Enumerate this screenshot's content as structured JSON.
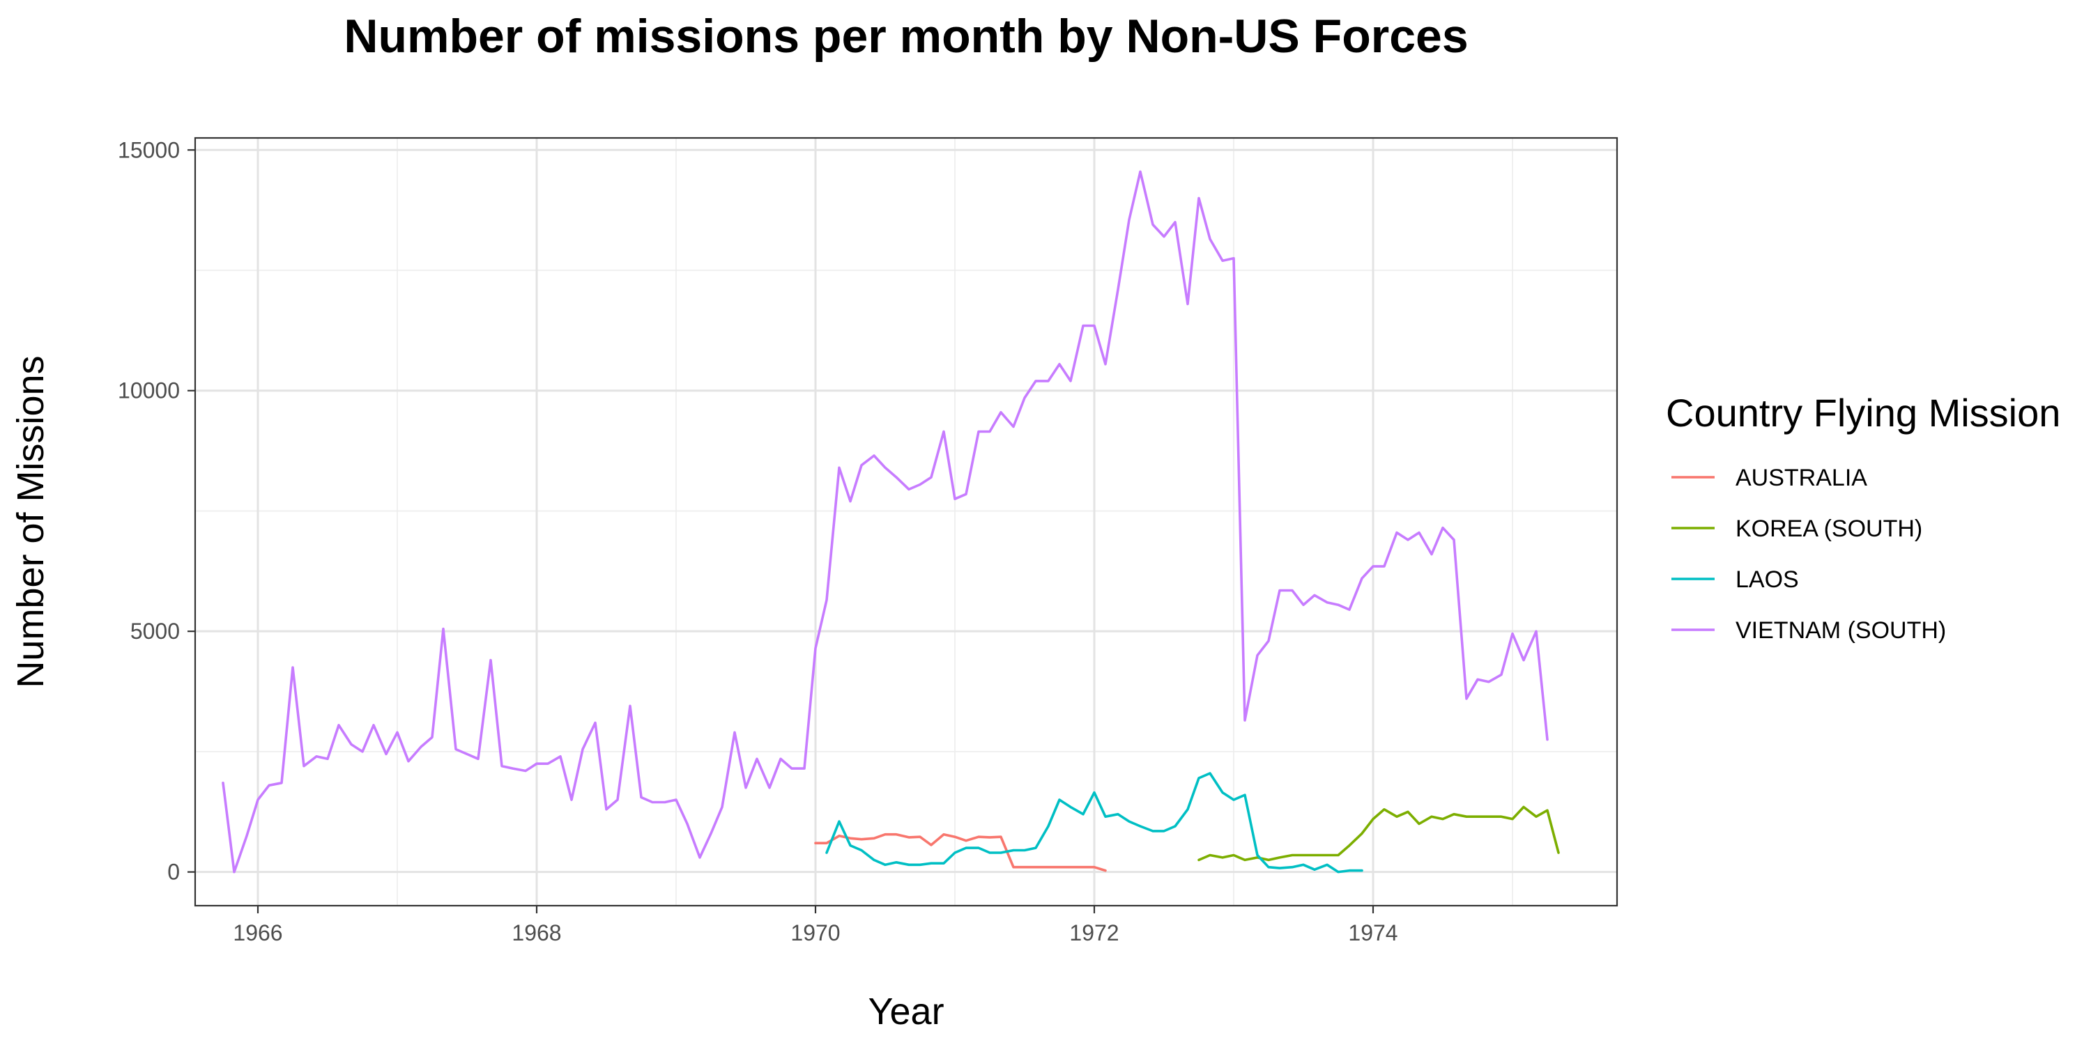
{
  "chart_data": {
    "type": "line",
    "title": "Number of missions per month by Non-US Forces",
    "xlabel": "Year",
    "ylabel": "Number of Missions",
    "xlim": [
      1965.55,
      1975.75
    ],
    "ylim": [
      -700,
      15250
    ],
    "x_ticks": [
      1966,
      1968,
      1970,
      1972,
      1974
    ],
    "y_ticks": [
      0,
      5000,
      10000,
      15000
    ],
    "x_minor_ticks": [
      1967,
      1969,
      1971,
      1973,
      1975
    ],
    "y_minor_ticks": [
      2500,
      7500,
      12500
    ],
    "grid": true,
    "legend": {
      "title": "Country Flying Mission",
      "placement": "right"
    },
    "series": [
      {
        "name": "AUSTRALIA",
        "color": "#F8766D",
        "points": [
          [
            1970.0,
            600
          ],
          [
            1970.08,
            600
          ],
          [
            1970.17,
            750
          ],
          [
            1970.25,
            700
          ],
          [
            1970.33,
            680
          ],
          [
            1970.42,
            700
          ],
          [
            1970.5,
            780
          ],
          [
            1970.58,
            780
          ],
          [
            1970.67,
            720
          ],
          [
            1970.75,
            730
          ],
          [
            1970.83,
            560
          ],
          [
            1970.92,
            780
          ],
          [
            1971.0,
            730
          ],
          [
            1971.08,
            650
          ],
          [
            1971.17,
            730
          ],
          [
            1971.25,
            720
          ],
          [
            1971.33,
            730
          ],
          [
            1971.42,
            100
          ],
          [
            1971.5,
            100
          ],
          [
            1971.58,
            100
          ],
          [
            1971.67,
            100
          ],
          [
            1971.75,
            100
          ],
          [
            1971.83,
            100
          ],
          [
            1971.92,
            100
          ],
          [
            1972.0,
            100
          ],
          [
            1972.08,
            30
          ]
        ]
      },
      {
        "name": "KOREA (SOUTH)",
        "color": "#7CAE00",
        "points": [
          [
            1972.75,
            250
          ],
          [
            1972.83,
            350
          ],
          [
            1972.92,
            300
          ],
          [
            1973.0,
            350
          ],
          [
            1973.08,
            250
          ],
          [
            1973.17,
            300
          ],
          [
            1973.25,
            250
          ],
          [
            1973.33,
            300
          ],
          [
            1973.42,
            350
          ],
          [
            1973.5,
            350
          ],
          [
            1973.58,
            350
          ],
          [
            1973.67,
            350
          ],
          [
            1973.75,
            350
          ],
          [
            1973.83,
            550
          ],
          [
            1973.92,
            800
          ],
          [
            1974.0,
            1100
          ],
          [
            1974.08,
            1300
          ],
          [
            1974.17,
            1150
          ],
          [
            1974.25,
            1250
          ],
          [
            1974.33,
            1000
          ],
          [
            1974.42,
            1150
          ],
          [
            1974.5,
            1100
          ],
          [
            1974.58,
            1200
          ],
          [
            1974.67,
            1150
          ],
          [
            1974.75,
            1150
          ],
          [
            1974.83,
            1150
          ],
          [
            1974.92,
            1150
          ],
          [
            1975.0,
            1100
          ],
          [
            1975.08,
            1350
          ],
          [
            1975.17,
            1150
          ],
          [
            1975.25,
            1280
          ],
          [
            1975.33,
            400
          ]
        ]
      },
      {
        "name": "LAOS",
        "color": "#00BFC4",
        "points": [
          [
            1970.08,
            400
          ],
          [
            1970.17,
            1050
          ],
          [
            1970.25,
            550
          ],
          [
            1970.33,
            450
          ],
          [
            1970.42,
            250
          ],
          [
            1970.5,
            150
          ],
          [
            1970.58,
            200
          ],
          [
            1970.67,
            150
          ],
          [
            1970.75,
            150
          ],
          [
            1970.83,
            180
          ],
          [
            1970.92,
            180
          ],
          [
            1971.0,
            400
          ],
          [
            1971.08,
            500
          ],
          [
            1971.17,
            500
          ],
          [
            1971.25,
            400
          ],
          [
            1971.33,
            400
          ],
          [
            1971.42,
            450
          ],
          [
            1971.5,
            450
          ],
          [
            1971.58,
            500
          ],
          [
            1971.67,
            950
          ],
          [
            1971.75,
            1500
          ],
          [
            1971.83,
            1350
          ],
          [
            1971.92,
            1200
          ],
          [
            1972.0,
            1650
          ],
          [
            1972.08,
            1150
          ],
          [
            1972.17,
            1200
          ],
          [
            1972.25,
            1050
          ],
          [
            1972.33,
            950
          ],
          [
            1972.42,
            850
          ],
          [
            1972.5,
            850
          ],
          [
            1972.58,
            950
          ],
          [
            1972.67,
            1300
          ],
          [
            1972.75,
            1950
          ],
          [
            1972.83,
            2050
          ],
          [
            1972.92,
            1650
          ],
          [
            1973.0,
            1500
          ],
          [
            1973.08,
            1600
          ],
          [
            1973.17,
            350
          ],
          [
            1973.25,
            100
          ],
          [
            1973.33,
            80
          ],
          [
            1973.42,
            100
          ],
          [
            1973.5,
            150
          ],
          [
            1973.58,
            50
          ],
          [
            1973.67,
            150
          ],
          [
            1973.75,
            0
          ],
          [
            1973.83,
            30
          ],
          [
            1973.92,
            30
          ]
        ]
      },
      {
        "name": "VIETNAM (SOUTH)",
        "color": "#C77CFF",
        "points": [
          [
            1965.75,
            1850
          ],
          [
            1965.83,
            0
          ],
          [
            1965.92,
            750
          ],
          [
            1966.0,
            1500
          ],
          [
            1966.08,
            1800
          ],
          [
            1966.17,
            1850
          ],
          [
            1966.25,
            4250
          ],
          [
            1966.33,
            2200
          ],
          [
            1966.42,
            2400
          ],
          [
            1966.5,
            2350
          ],
          [
            1966.58,
            3050
          ],
          [
            1966.67,
            2650
          ],
          [
            1966.75,
            2500
          ],
          [
            1966.83,
            3050
          ],
          [
            1966.92,
            2450
          ],
          [
            1967.0,
            2900
          ],
          [
            1967.08,
            2300
          ],
          [
            1967.17,
            2600
          ],
          [
            1967.25,
            2800
          ],
          [
            1967.33,
            5050
          ],
          [
            1967.42,
            2550
          ],
          [
            1967.5,
            2450
          ],
          [
            1967.58,
            2350
          ],
          [
            1967.67,
            4400
          ],
          [
            1967.75,
            2200
          ],
          [
            1967.83,
            2150
          ],
          [
            1967.92,
            2100
          ],
          [
            1968.0,
            2250
          ],
          [
            1968.08,
            2250
          ],
          [
            1968.17,
            2400
          ],
          [
            1968.25,
            1500
          ],
          [
            1968.33,
            2550
          ],
          [
            1968.42,
            3100
          ],
          [
            1968.5,
            1300
          ],
          [
            1968.58,
            1500
          ],
          [
            1968.67,
            3450
          ],
          [
            1968.75,
            1550
          ],
          [
            1968.83,
            1450
          ],
          [
            1968.92,
            1450
          ],
          [
            1969.0,
            1500
          ],
          [
            1969.08,
            1000
          ],
          [
            1969.17,
            300
          ],
          [
            1969.25,
            800
          ],
          [
            1969.33,
            1350
          ],
          [
            1969.42,
            2900
          ],
          [
            1969.5,
            1750
          ],
          [
            1969.58,
            2350
          ],
          [
            1969.67,
            1750
          ],
          [
            1969.75,
            2350
          ],
          [
            1969.83,
            2150
          ],
          [
            1969.92,
            2150
          ],
          [
            1970.0,
            4650
          ],
          [
            1970.08,
            5650
          ],
          [
            1970.17,
            8400
          ],
          [
            1970.25,
            7700
          ],
          [
            1970.33,
            8450
          ],
          [
            1970.42,
            8650
          ],
          [
            1970.5,
            8400
          ],
          [
            1970.58,
            8200
          ],
          [
            1970.67,
            7950
          ],
          [
            1970.75,
            8050
          ],
          [
            1970.83,
            8200
          ],
          [
            1970.92,
            9150
          ],
          [
            1971.0,
            7750
          ],
          [
            1971.08,
            7850
          ],
          [
            1971.17,
            9150
          ],
          [
            1971.25,
            9150
          ],
          [
            1971.33,
            9550
          ],
          [
            1971.42,
            9250
          ],
          [
            1971.5,
            9850
          ],
          [
            1971.58,
            10200
          ],
          [
            1971.67,
            10200
          ],
          [
            1971.75,
            10550
          ],
          [
            1971.83,
            10200
          ],
          [
            1971.92,
            11350
          ],
          [
            1972.0,
            11350
          ],
          [
            1972.08,
            10550
          ],
          [
            1972.17,
            12100
          ],
          [
            1972.25,
            13550
          ],
          [
            1972.33,
            14550
          ],
          [
            1972.42,
            13450
          ],
          [
            1972.5,
            13200
          ],
          [
            1972.58,
            13500
          ],
          [
            1972.67,
            11800
          ],
          [
            1972.75,
            14000
          ],
          [
            1972.83,
            13150
          ],
          [
            1972.92,
            12700
          ],
          [
            1973.0,
            12750
          ],
          [
            1973.08,
            3150
          ],
          [
            1973.17,
            4500
          ],
          [
            1973.25,
            4800
          ],
          [
            1973.33,
            5850
          ],
          [
            1973.42,
            5850
          ],
          [
            1973.5,
            5550
          ],
          [
            1973.58,
            5750
          ],
          [
            1973.67,
            5600
          ],
          [
            1973.75,
            5550
          ],
          [
            1973.83,
            5450
          ],
          [
            1973.92,
            6100
          ],
          [
            1974.0,
            6350
          ],
          [
            1974.08,
            6350
          ],
          [
            1974.17,
            7050
          ],
          [
            1974.25,
            6900
          ],
          [
            1974.33,
            7050
          ],
          [
            1974.42,
            6600
          ],
          [
            1974.5,
            7150
          ],
          [
            1974.58,
            6900
          ],
          [
            1974.67,
            3600
          ],
          [
            1974.75,
            4000
          ],
          [
            1974.83,
            3950
          ],
          [
            1974.92,
            4100
          ],
          [
            1975.0,
            4950
          ],
          [
            1975.08,
            4400
          ],
          [
            1975.17,
            5000
          ],
          [
            1975.25,
            2750
          ]
        ]
      }
    ]
  }
}
